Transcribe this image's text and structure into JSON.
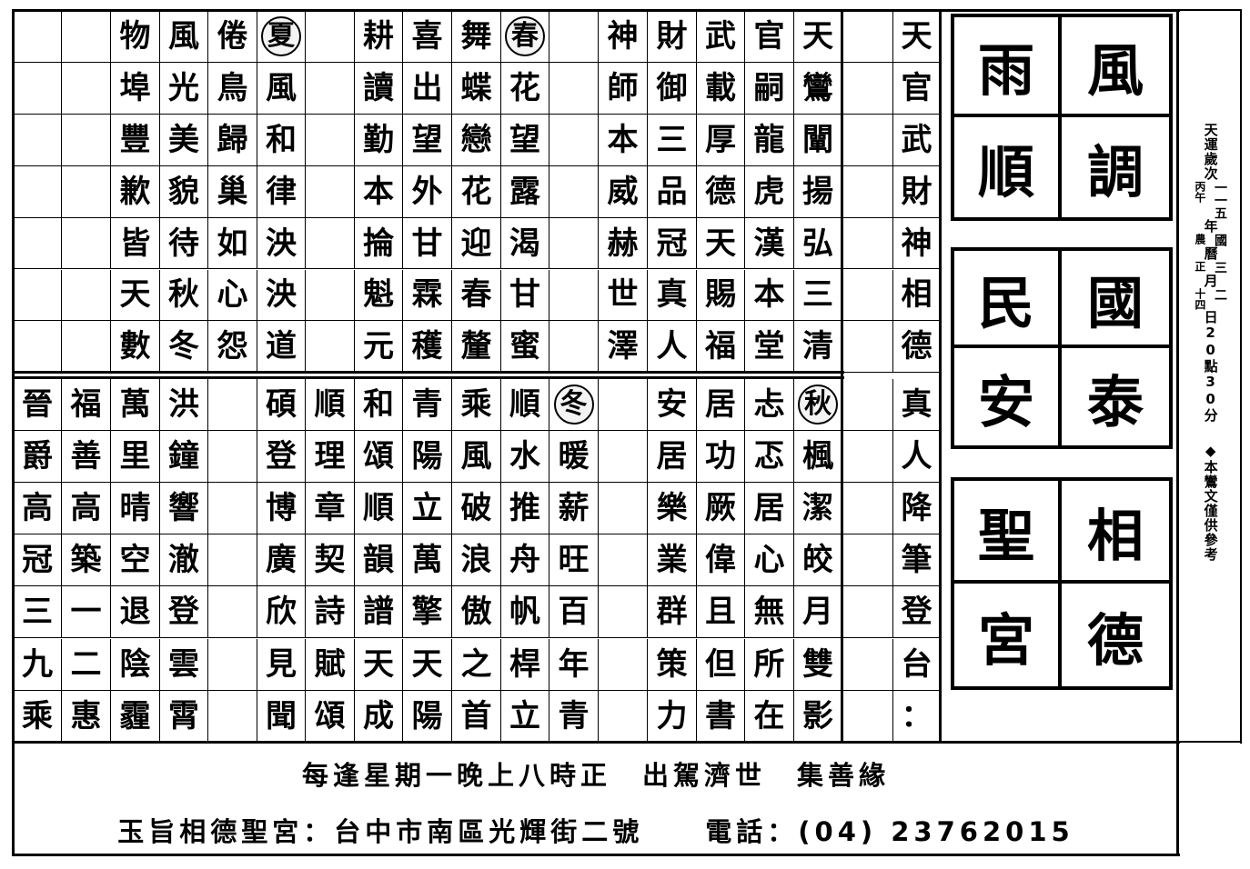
{
  "top_grid": [
    [
      "",
      "",
      "物",
      "風",
      "倦",
      "夏",
      "",
      "耕",
      "喜",
      "舞",
      "春",
      "",
      "神",
      "財",
      "武",
      "官",
      "天",
      "",
      "天"
    ],
    [
      "",
      "",
      "埠",
      "光",
      "鳥",
      "風",
      "",
      "讀",
      "出",
      "蝶",
      "花",
      "",
      "師",
      "御",
      "載",
      "嗣",
      "鸞",
      "",
      "官"
    ],
    [
      "",
      "",
      "豐",
      "美",
      "歸",
      "和",
      "",
      "勤",
      "望",
      "戀",
      "望",
      "",
      "本",
      "三",
      "厚",
      "龍",
      "闡",
      "",
      "武"
    ],
    [
      "",
      "",
      "歉",
      "貌",
      "巢",
      "律",
      "",
      "本",
      "外",
      "花",
      "露",
      "",
      "威",
      "品",
      "德",
      "虎",
      "揚",
      "",
      "財"
    ],
    [
      "",
      "",
      "皆",
      "待",
      "如",
      "泱",
      "",
      "掄",
      "甘",
      "迎",
      "渴",
      "",
      "赫",
      "冠",
      "天",
      "漢",
      "弘",
      "",
      "神"
    ],
    [
      "",
      "",
      "天",
      "秋",
      "心",
      "泱",
      "",
      "魁",
      "霖",
      "春",
      "甘",
      "",
      "世",
      "真",
      "賜",
      "本",
      "三",
      "",
      "相"
    ],
    [
      "",
      "",
      "數",
      "冬",
      "怨",
      "道",
      "",
      "元",
      "穫",
      "釐",
      "蜜",
      "",
      "澤",
      "人",
      "福",
      "堂",
      "清",
      "",
      "德"
    ]
  ],
  "bottom_grid": [
    [
      "晉",
      "福",
      "萬",
      "洪",
      "",
      "碩",
      "順",
      "和",
      "青",
      "乘",
      "順",
      "冬",
      "",
      "安",
      "居",
      "忐",
      "秋",
      "",
      "真"
    ],
    [
      "爵",
      "善",
      "里",
      "鐘",
      "",
      "登",
      "理",
      "頌",
      "陽",
      "風",
      "水",
      "暖",
      "",
      "居",
      "功",
      "忑",
      "楓",
      "",
      "人"
    ],
    [
      "高",
      "高",
      "晴",
      "響",
      "",
      "博",
      "章",
      "順",
      "立",
      "破",
      "推",
      "薪",
      "",
      "樂",
      "厥",
      "居",
      "潔",
      "",
      "降"
    ],
    [
      "冠",
      "築",
      "空",
      "澈",
      "",
      "廣",
      "契",
      "韻",
      "萬",
      "浪",
      "舟",
      "旺",
      "",
      "業",
      "偉",
      "心",
      "皎",
      "",
      "筆"
    ],
    [
      "三",
      "一",
      "退",
      "登",
      "",
      "欣",
      "詩",
      "譜",
      "擎",
      "傲",
      "帆",
      "百",
      "",
      "群",
      "且",
      "無",
      "月",
      "",
      "登"
    ],
    [
      "九",
      "二",
      "陰",
      "雲",
      "",
      "見",
      "賦",
      "天",
      "天",
      "之",
      "桿",
      "年",
      "",
      "策",
      "但",
      "所",
      "雙",
      "",
      "台"
    ],
    [
      "乘",
      "惠",
      "霾",
      "霄",
      "",
      "聞",
      "頌",
      "成",
      "陽",
      "首",
      "立",
      "青",
      "",
      "力",
      "書",
      "在",
      "影",
      "",
      "："
    ]
  ],
  "circled_seasons": [
    "夏",
    "春",
    "冬",
    "秋"
  ],
  "boxes": [
    {
      "chars": [
        "風",
        "調",
        "雨",
        "順"
      ]
    },
    {
      "chars": [
        "國",
        "泰",
        "民",
        "安"
      ]
    },
    {
      "chars": [
        "相",
        "德",
        "聖",
        "宮"
      ]
    }
  ],
  "date_column": {
    "segments": [
      {
        "main": "天運歲次"
      },
      {
        "left": "丙午",
        "right": "一一五"
      },
      {
        "main": "年"
      },
      {
        "left": "農",
        "right": "國"
      },
      {
        "main": "曆"
      },
      {
        "left": "正",
        "right": "三"
      },
      {
        "main": "月"
      },
      {
        "left": "十四",
        "right": "二"
      },
      {
        "main": "日"
      },
      {
        "main": "20"
      },
      {
        "main": "點"
      },
      {
        "main": "30"
      },
      {
        "main": "分"
      }
    ],
    "note": "◆本鸞文僅供參考"
  },
  "footer": {
    "line1": "每逢星期一晚上八時正　出駕濟世　集善緣",
    "line2": "玉旨相德聖宮：台中市南區光輝街二號　　電話：(04) 23762015"
  }
}
